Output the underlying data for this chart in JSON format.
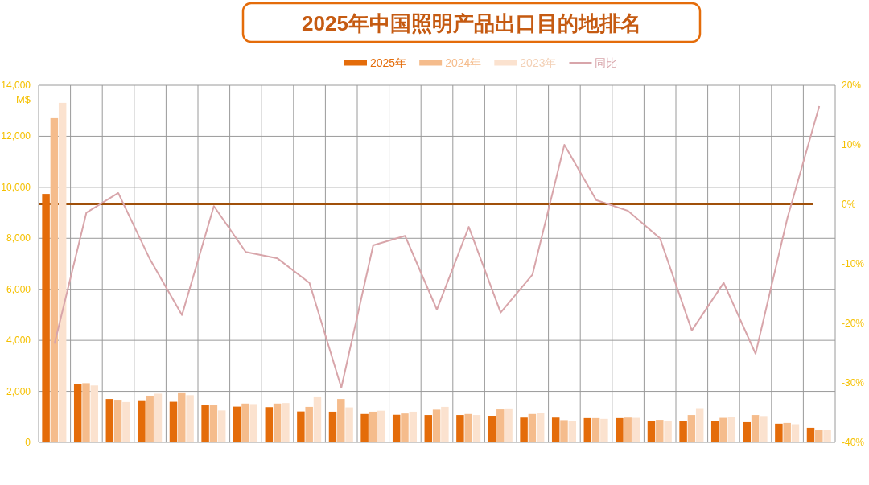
{
  "chart_data": {
    "type": "bar",
    "title": "2025年中国照明产品出口目的地排名",
    "ylabel": "M$",
    "categories": [
      null,
      null,
      null,
      null,
      null,
      null,
      null,
      null,
      null,
      null,
      null,
      null,
      null,
      null,
      null,
      null,
      null,
      null,
      null,
      null,
      null,
      null,
      null,
      null,
      null
    ],
    "series": [
      {
        "name": "2025年",
        "color": "#e46c0a",
        "values": [
          9740,
          2300,
          1700,
          1650,
          1590,
          1450,
          1400,
          1380,
          1210,
          1200,
          1110,
          1080,
          1070,
          1070,
          1040,
          970,
          970,
          950,
          950,
          850,
          850,
          820,
          790,
          730,
          570
        ]
      },
      {
        "name": "2024年",
        "color": "#f5bc8c",
        "values": [
          12710,
          2320,
          1670,
          1830,
          1960,
          1450,
          1520,
          1520,
          1390,
          1700,
          1200,
          1130,
          1280,
          1110,
          1290,
          1110,
          870,
          950,
          970,
          880,
          1070,
          960,
          1070,
          760,
          480
        ]
      },
      {
        "name": "2023年",
        "color": "#fbe2cf",
        "values": [
          13310,
          2230,
          1580,
          1910,
          1850,
          1250,
          1500,
          1540,
          1800,
          1370,
          1240,
          1200,
          1390,
          1070,
          1330,
          1140,
          840,
          920,
          960,
          840,
          1340,
          980,
          1030,
          710,
          480
        ]
      },
      {
        "name": "同比",
        "type": "line",
        "axis": "y2",
        "color": "#d8a5aa",
        "values": [
          -23.4,
          -1.4,
          1.9,
          -9.3,
          -18.6,
          -0.3,
          -8.0,
          -9.1,
          -13.2,
          -30.8,
          -6.9,
          -5.3,
          -17.7,
          -3.8,
          -18.2,
          -11.8,
          10.0,
          0.7,
          -1.1,
          -5.7,
          -21.2,
          -13.2,
          -25.1,
          -2.3,
          16.5
        ]
      }
    ],
    "ylim": [
      0,
      14000
    ],
    "yticks": [
      0,
      {
        "value": 2000,
        "label": "2,000"
      },
      {
        "value": 4000,
        "label": "4,000"
      },
      {
        "value": 6000,
        "label": "6,000"
      },
      {
        "value": 8000,
        "label": "8,000"
      },
      {
        "value": 10000,
        "label": "10,000"
      },
      {
        "value": 12000,
        "label": "12,000"
      },
      {
        "value": 14000,
        "label": "14,000"
      }
    ],
    "y2lim": [
      -40,
      20
    ],
    "y2ticks": [
      {
        "value": -40,
        "label": "-40%"
      },
      {
        "value": -30,
        "label": "-30%"
      },
      {
        "value": -20,
        "label": "-20%"
      },
      {
        "value": -10,
        "label": "-10%"
      },
      {
        "value": 0,
        "label": "0%"
      },
      {
        "value": 10,
        "label": "10%"
      },
      {
        "value": 20,
        "label": "20%"
      }
    ],
    "ref_lines": [
      {
        "axis": "y2",
        "value": 0,
        "color": "#a0500a"
      }
    ],
    "grid": true,
    "legend": "top"
  }
}
